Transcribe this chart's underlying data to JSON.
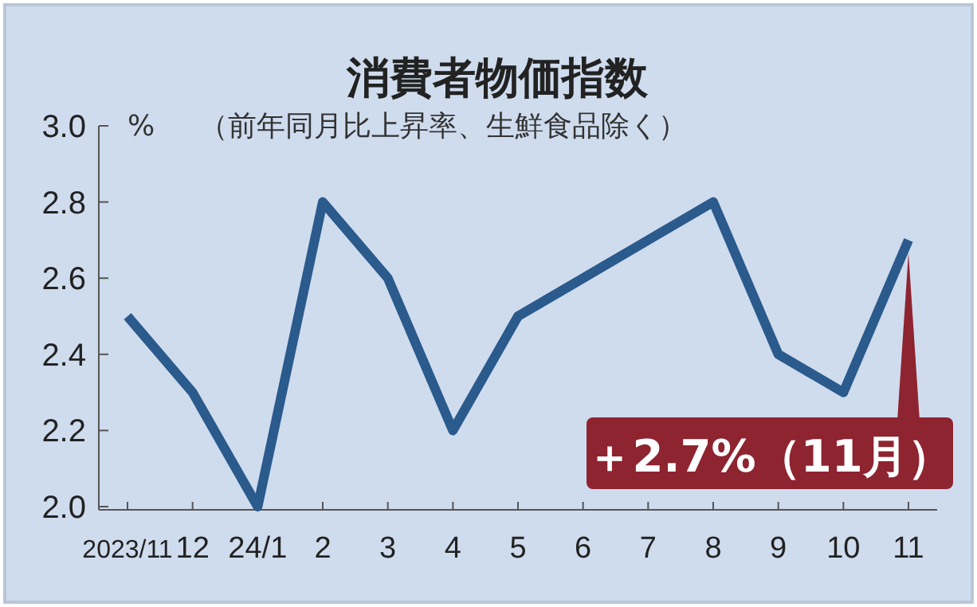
{
  "chart_data": {
    "type": "line",
    "title": "消費者物価指数",
    "subtitle": "（前年同月比上昇率、生鮮食品除く）",
    "ylabel": "%",
    "categories": [
      "2023/11",
      "12",
      "24/1",
      "2",
      "3",
      "4",
      "5",
      "6",
      "7",
      "8",
      "9",
      "10",
      "11"
    ],
    "series": [
      {
        "color": "#2b5a8c",
        "values": [
          2.5,
          2.3,
          2.0,
          2.8,
          2.6,
          2.2,
          2.5,
          2.6,
          2.7,
          2.8,
          2.4,
          2.3,
          2.7
        ]
      }
    ],
    "ylim": [
      2.0,
      3.0
    ],
    "yticks": [
      {
        "value": 2.0,
        "label": "2.0"
      },
      {
        "value": 2.2,
        "label": "2.2"
      },
      {
        "value": 2.4,
        "label": "2.4"
      },
      {
        "value": 2.6,
        "label": "2.6"
      },
      {
        "value": 2.8,
        "label": "2.8"
      },
      {
        "value": 3.0,
        "label": "3.0"
      }
    ],
    "grid": false,
    "marker": "none",
    "line_style": "solid",
    "annotations": [
      {
        "text": "＋2.7%（11月）",
        "x": "11",
        "y": 2.7
      }
    ]
  }
}
